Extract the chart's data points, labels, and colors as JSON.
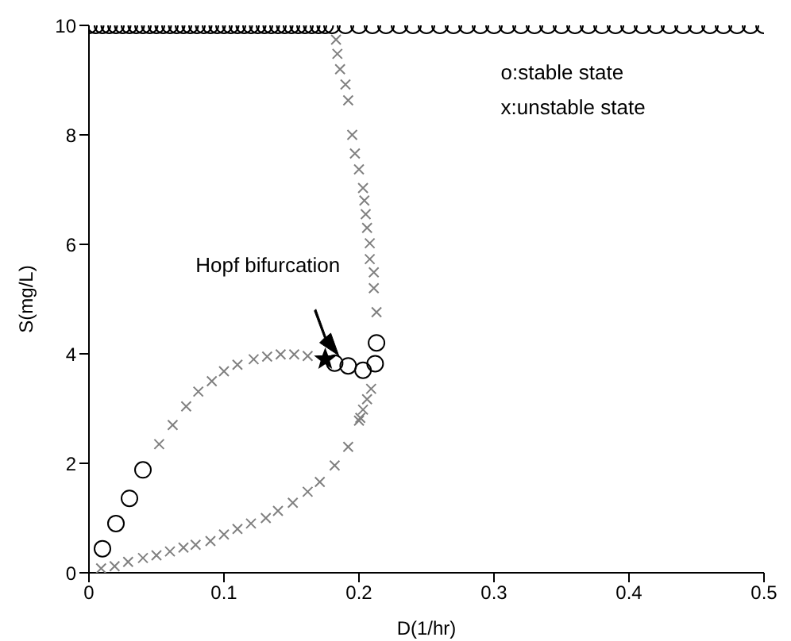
{
  "chart_data": {
    "type": "scatter",
    "xlabel": "D(1/hr)",
    "ylabel": "S(mg/L)",
    "xlim": [
      0,
      0.5
    ],
    "ylim": [
      0,
      10
    ],
    "xticks": [
      0,
      0.1,
      0.2,
      0.3,
      0.4,
      0.5
    ],
    "yticks": [
      0,
      2,
      4,
      6,
      8,
      10
    ],
    "grid": false,
    "annotations": [
      "o:stable state",
      "x:unstable state",
      "Hopf bifurcation"
    ],
    "series": [
      {
        "color": "#000000",
        "marker": "circle",
        "x": [
          0,
          0.005,
          0.01,
          0.015,
          0.02,
          0.025,
          0.03,
          0.035,
          0.04,
          0.045,
          0.05,
          0.055,
          0.06,
          0.065,
          0.07,
          0.075,
          0.08,
          0.085,
          0.09,
          0.095,
          0.1,
          0.105,
          0.11,
          0.115,
          0.12,
          0.125,
          0.13,
          0.135,
          0.14,
          0.145,
          0.15,
          0.155,
          0.16,
          0.165,
          0.17,
          0.175,
          0.18,
          0.19,
          0.2,
          0.21,
          0.22,
          0.23,
          0.24,
          0.25,
          0.26,
          0.27,
          0.28,
          0.29,
          0.3,
          0.31,
          0.32,
          0.33,
          0.34,
          0.35,
          0.36,
          0.37,
          0.38,
          0.39,
          0.4,
          0.41,
          0.42,
          0.43,
          0.44,
          0.45,
          0.46,
          0.47,
          0.48,
          0.49,
          0.5
        ],
        "values": [
          10,
          10,
          10,
          10,
          10,
          10,
          10,
          10,
          10,
          10,
          10,
          10,
          10,
          10,
          10,
          10,
          10,
          10,
          10,
          10,
          10,
          10,
          10,
          10,
          10,
          10,
          10,
          10,
          10,
          10,
          10,
          10,
          10,
          10,
          10,
          10,
          10,
          10,
          10,
          10,
          10,
          10,
          10,
          10,
          10,
          10,
          10,
          10,
          10,
          10,
          10,
          10,
          10,
          10,
          10,
          10,
          10,
          10,
          10,
          10,
          10,
          10,
          10,
          10,
          10,
          10,
          10,
          10,
          10
        ]
      },
      {
        "color": "#000000",
        "marker": "circle",
        "x": [
          0.01,
          0.02,
          0.03,
          0.04,
          0.182,
          0.192,
          0.203,
          0.212,
          0.213
        ],
        "values": [
          0.44,
          0.9,
          1.36,
          1.88,
          3.83,
          3.78,
          3.7,
          3.82,
          4.2
        ]
      },
      {
        "color": "#808080",
        "marker": "cross",
        "x": [
          0.052,
          0.062,
          0.072,
          0.081,
          0.091,
          0.1,
          0.11,
          0.122,
          0.132,
          0.142,
          0.152,
          0.162
        ],
        "values": [
          2.35,
          2.7,
          3.04,
          3.31,
          3.5,
          3.68,
          3.8,
          3.9,
          3.95,
          3.99,
          3.99,
          3.96
        ]
      },
      {
        "color": "#808080",
        "marker": "cross",
        "x": [
          0.009,
          0.019,
          0.029,
          0.04,
          0.05,
          0.06,
          0.07,
          0.079,
          0.09,
          0.1,
          0.11,
          0.12,
          0.131,
          0.14,
          0.151,
          0.162,
          0.171,
          0.182,
          0.192,
          0.2,
          0.201,
          0.203,
          0.206,
          0.209
        ],
        "values": [
          0.08,
          0.12,
          0.2,
          0.27,
          0.32,
          0.39,
          0.46,
          0.51,
          0.58,
          0.7,
          0.8,
          0.9,
          1.0,
          1.13,
          1.28,
          1.48,
          1.66,
          1.96,
          2.3,
          2.78,
          2.83,
          2.98,
          3.17,
          3.36
        ]
      },
      {
        "color": "#808080",
        "marker": "cross",
        "x": [
          0.183,
          0.184,
          0.186,
          0.19,
          0.192,
          0.195,
          0.197,
          0.2,
          0.203,
          0.204,
          0.205,
          0.206,
          0.208,
          0.208,
          0.211,
          0.211,
          0.213
        ],
        "values": [
          9.74,
          9.48,
          9.2,
          8.92,
          8.63,
          8.0,
          7.66,
          7.37,
          7.03,
          6.8,
          6.55,
          6.3,
          6.02,
          5.73,
          5.49,
          5.2,
          4.76
        ]
      },
      {
        "color": "#000000",
        "marker": "star",
        "x": [
          0.175
        ],
        "values": [
          3.9
        ]
      }
    ]
  }
}
